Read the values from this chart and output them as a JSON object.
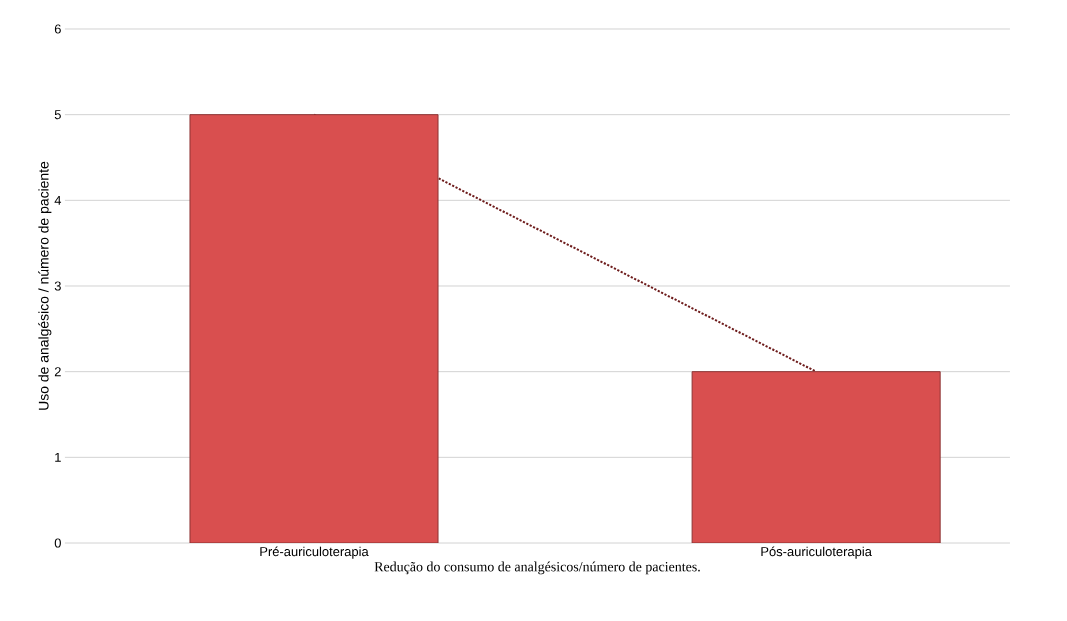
{
  "chart_data": {
    "type": "bar",
    "xlabel": "Redução do consumo de analgésicos/número de pacientes.",
    "ylabel": "Uso de analgésico / número de paciente",
    "categories": [
      "Pré-auriculoterapia",
      "Pós-auriculoterapia"
    ],
    "series": [
      {
        "type": "line",
        "values": [
          5,
          2
        ],
        "color": "#6e1c1c",
        "line_style": "dotted",
        "marker": "none"
      },
      {
        "values": [
          5,
          2
        ],
        "color": "#d94f4f"
      }
    ],
    "ylim": [
      0,
      6
    ],
    "yticks": [
      0,
      1,
      2,
      3,
      4,
      5,
      6
    ],
    "grid": "y"
  }
}
